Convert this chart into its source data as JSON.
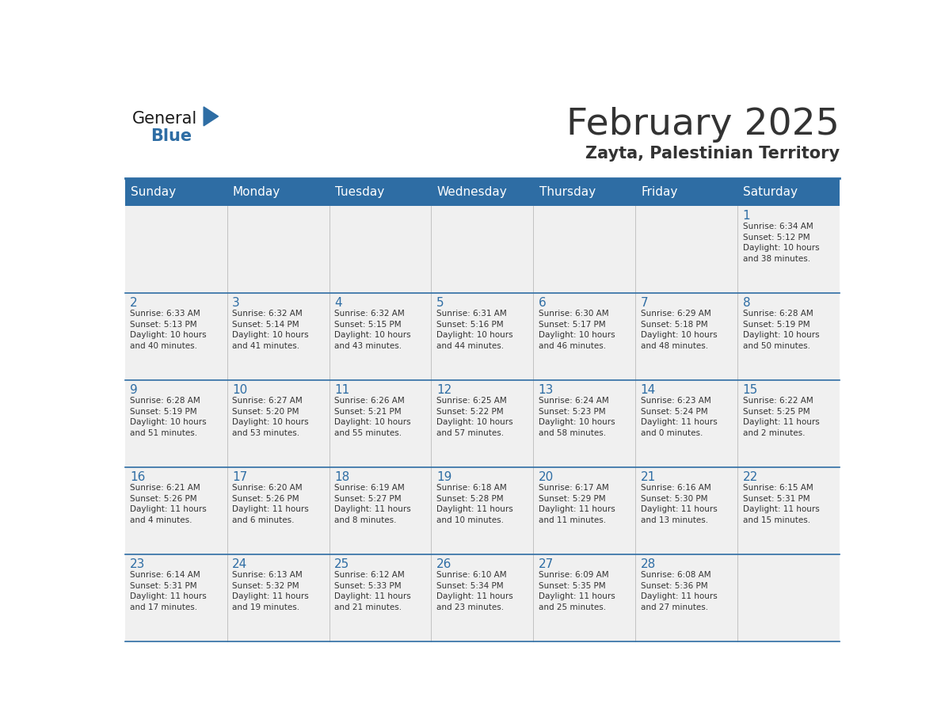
{
  "title": "February 2025",
  "subtitle": "Zayta, Palestinian Territory",
  "header_color": "#2E6DA4",
  "header_text_color": "#FFFFFF",
  "cell_bg_color": "#F0F0F0",
  "day_number_color": "#2E6DA4",
  "text_color": "#333333",
  "line_color": "#2E6DA4",
  "days_of_week": [
    "Sunday",
    "Monday",
    "Tuesday",
    "Wednesday",
    "Thursday",
    "Friday",
    "Saturday"
  ],
  "weeks": [
    [
      {
        "day": null,
        "info": null
      },
      {
        "day": null,
        "info": null
      },
      {
        "day": null,
        "info": null
      },
      {
        "day": null,
        "info": null
      },
      {
        "day": null,
        "info": null
      },
      {
        "day": null,
        "info": null
      },
      {
        "day": "1",
        "info": "Sunrise: 6:34 AM\nSunset: 5:12 PM\nDaylight: 10 hours\nand 38 minutes."
      }
    ],
    [
      {
        "day": "2",
        "info": "Sunrise: 6:33 AM\nSunset: 5:13 PM\nDaylight: 10 hours\nand 40 minutes."
      },
      {
        "day": "3",
        "info": "Sunrise: 6:32 AM\nSunset: 5:14 PM\nDaylight: 10 hours\nand 41 minutes."
      },
      {
        "day": "4",
        "info": "Sunrise: 6:32 AM\nSunset: 5:15 PM\nDaylight: 10 hours\nand 43 minutes."
      },
      {
        "day": "5",
        "info": "Sunrise: 6:31 AM\nSunset: 5:16 PM\nDaylight: 10 hours\nand 44 minutes."
      },
      {
        "day": "6",
        "info": "Sunrise: 6:30 AM\nSunset: 5:17 PM\nDaylight: 10 hours\nand 46 minutes."
      },
      {
        "day": "7",
        "info": "Sunrise: 6:29 AM\nSunset: 5:18 PM\nDaylight: 10 hours\nand 48 minutes."
      },
      {
        "day": "8",
        "info": "Sunrise: 6:28 AM\nSunset: 5:19 PM\nDaylight: 10 hours\nand 50 minutes."
      }
    ],
    [
      {
        "day": "9",
        "info": "Sunrise: 6:28 AM\nSunset: 5:19 PM\nDaylight: 10 hours\nand 51 minutes."
      },
      {
        "day": "10",
        "info": "Sunrise: 6:27 AM\nSunset: 5:20 PM\nDaylight: 10 hours\nand 53 minutes."
      },
      {
        "day": "11",
        "info": "Sunrise: 6:26 AM\nSunset: 5:21 PM\nDaylight: 10 hours\nand 55 minutes."
      },
      {
        "day": "12",
        "info": "Sunrise: 6:25 AM\nSunset: 5:22 PM\nDaylight: 10 hours\nand 57 minutes."
      },
      {
        "day": "13",
        "info": "Sunrise: 6:24 AM\nSunset: 5:23 PM\nDaylight: 10 hours\nand 58 minutes."
      },
      {
        "day": "14",
        "info": "Sunrise: 6:23 AM\nSunset: 5:24 PM\nDaylight: 11 hours\nand 0 minutes."
      },
      {
        "day": "15",
        "info": "Sunrise: 6:22 AM\nSunset: 5:25 PM\nDaylight: 11 hours\nand 2 minutes."
      }
    ],
    [
      {
        "day": "16",
        "info": "Sunrise: 6:21 AM\nSunset: 5:26 PM\nDaylight: 11 hours\nand 4 minutes."
      },
      {
        "day": "17",
        "info": "Sunrise: 6:20 AM\nSunset: 5:26 PM\nDaylight: 11 hours\nand 6 minutes."
      },
      {
        "day": "18",
        "info": "Sunrise: 6:19 AM\nSunset: 5:27 PM\nDaylight: 11 hours\nand 8 minutes."
      },
      {
        "day": "19",
        "info": "Sunrise: 6:18 AM\nSunset: 5:28 PM\nDaylight: 11 hours\nand 10 minutes."
      },
      {
        "day": "20",
        "info": "Sunrise: 6:17 AM\nSunset: 5:29 PM\nDaylight: 11 hours\nand 11 minutes."
      },
      {
        "day": "21",
        "info": "Sunrise: 6:16 AM\nSunset: 5:30 PM\nDaylight: 11 hours\nand 13 minutes."
      },
      {
        "day": "22",
        "info": "Sunrise: 6:15 AM\nSunset: 5:31 PM\nDaylight: 11 hours\nand 15 minutes."
      }
    ],
    [
      {
        "day": "23",
        "info": "Sunrise: 6:14 AM\nSunset: 5:31 PM\nDaylight: 11 hours\nand 17 minutes."
      },
      {
        "day": "24",
        "info": "Sunrise: 6:13 AM\nSunset: 5:32 PM\nDaylight: 11 hours\nand 19 minutes."
      },
      {
        "day": "25",
        "info": "Sunrise: 6:12 AM\nSunset: 5:33 PM\nDaylight: 11 hours\nand 21 minutes."
      },
      {
        "day": "26",
        "info": "Sunrise: 6:10 AM\nSunset: 5:34 PM\nDaylight: 11 hours\nand 23 minutes."
      },
      {
        "day": "27",
        "info": "Sunrise: 6:09 AM\nSunset: 5:35 PM\nDaylight: 11 hours\nand 25 minutes."
      },
      {
        "day": "28",
        "info": "Sunrise: 6:08 AM\nSunset: 5:36 PM\nDaylight: 11 hours\nand 27 minutes."
      },
      {
        "day": null,
        "info": null
      }
    ]
  ],
  "logo_text_general": "General",
  "logo_text_blue": "Blue",
  "logo_color_general": "#1A1A1A",
  "logo_color_blue": "#2E6DA4",
  "logo_triangle_color": "#2E6DA4"
}
